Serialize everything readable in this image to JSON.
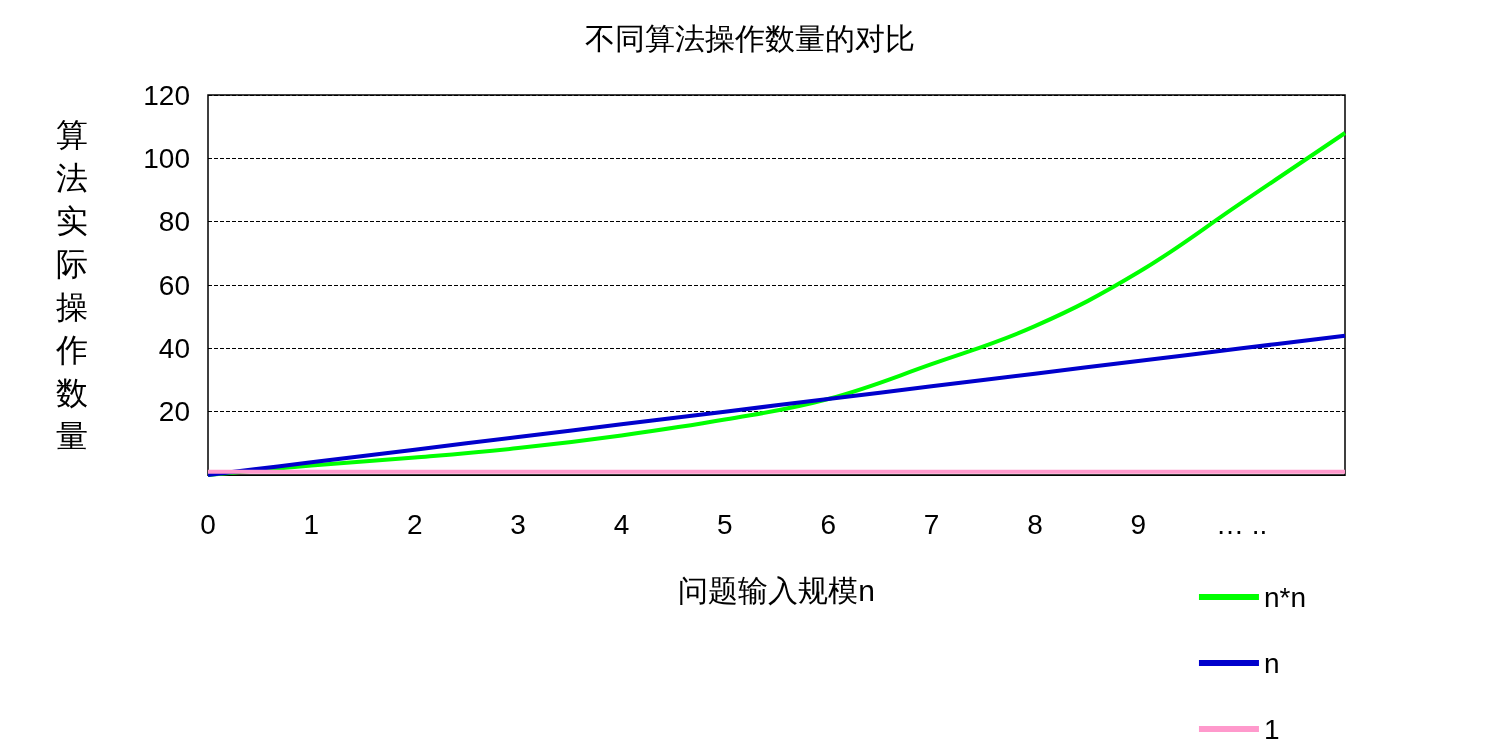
{
  "chart_data": {
    "type": "line",
    "title": "不同算法操作数量的对比",
    "xlabel": "问题输入规模n",
    "ylabel": "算法实际操作数量",
    "categories": [
      "0",
      "1",
      "2",
      "3",
      "4",
      "5",
      "6",
      "7",
      "8",
      "9",
      "… ..",
      null
    ],
    "series": [
      {
        "name": "n*n",
        "color": "#00ff00",
        "values": [
          0,
          3,
          5.5,
          8.5,
          12.5,
          17.5,
          24,
          35,
          47,
          64,
          86,
          108
        ]
      },
      {
        "name": "n",
        "color": "#0000cc",
        "values": [
          0,
          4,
          8,
          12,
          16,
          20,
          24,
          28,
          32,
          36,
          40,
          44
        ]
      },
      {
        "name": "1",
        "color": "#ff99cc",
        "values": [
          1,
          1,
          1,
          1,
          1,
          1,
          1,
          1,
          1,
          1,
          1,
          1
        ]
      }
    ],
    "ylim": [
      0,
      120
    ],
    "yticks": [
      {
        "value": 0,
        "label": null
      },
      20,
      40,
      60,
      80,
      100,
      120
    ],
    "grid": "y",
    "legend": "bottom right"
  }
}
